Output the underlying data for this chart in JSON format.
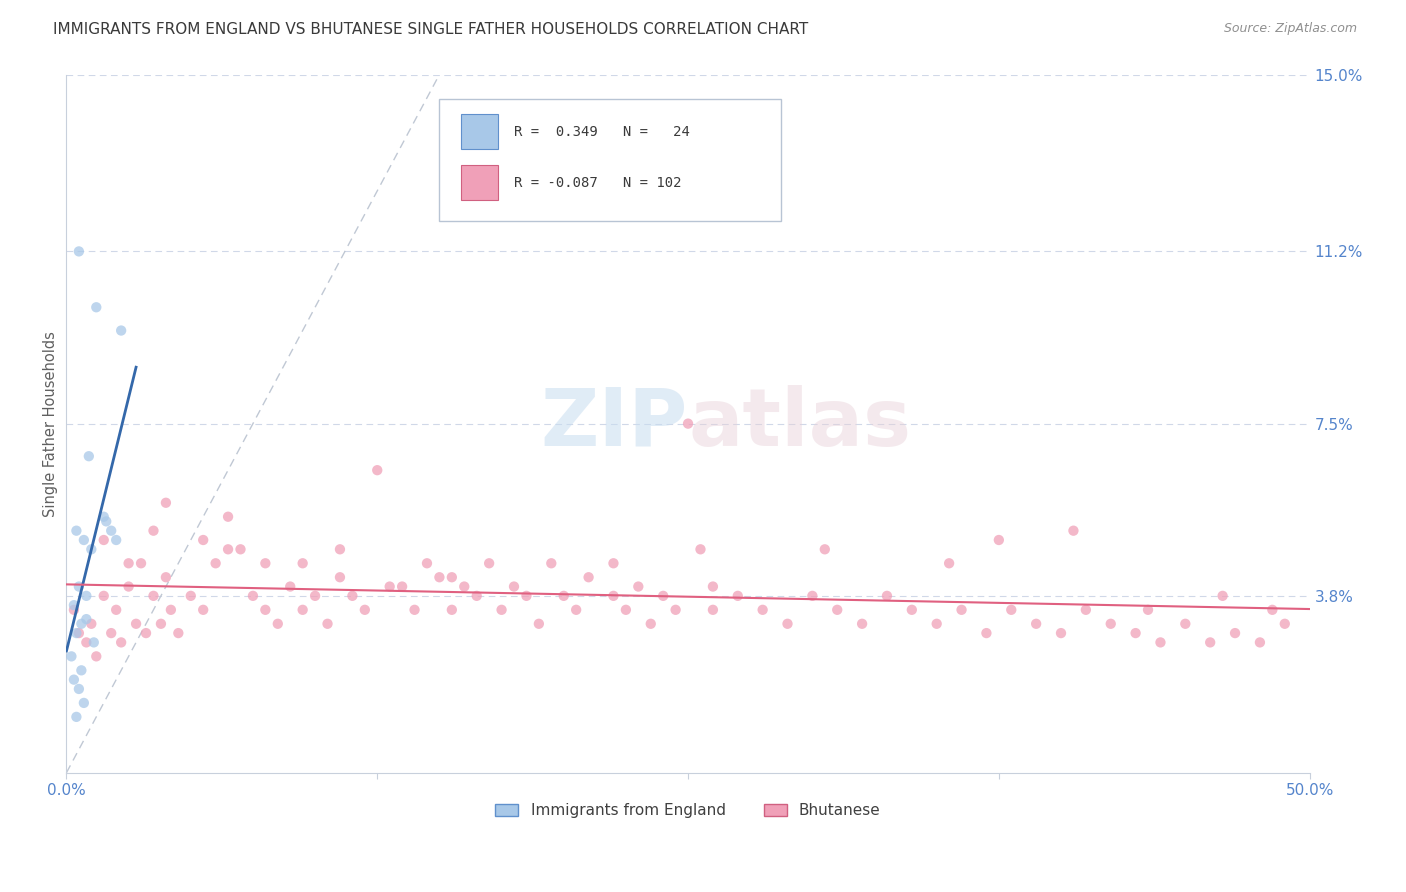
{
  "title": "IMMIGRANTS FROM ENGLAND VS BHUTANESE SINGLE FATHER HOUSEHOLDS CORRELATION CHART",
  "source": "Source: ZipAtlas.com",
  "ylabel": "Single Father Households",
  "xlim": [
    0.0,
    0.5
  ],
  "ylim": [
    -0.005,
    0.155
  ],
  "plot_ylim": [
    0.0,
    0.15
  ],
  "ytick_vals": [
    0.038,
    0.075,
    0.112,
    0.15
  ],
  "ytick_labels": [
    "3.8%",
    "7.5%",
    "11.2%",
    "15.0%"
  ],
  "xtick_vals": [
    0.0,
    0.125,
    0.25,
    0.375,
    0.5
  ],
  "xtick_labels": [
    "0.0%",
    "",
    "",
    "",
    "50.0%"
  ],
  "watermark": "ZIPatlas",
  "england_color": "#a8c8e8",
  "bhutanese_color": "#f0a0b8",
  "england_line_color": "#3468aa",
  "bhutanese_line_color": "#e06080",
  "diagonal_color": "#c0c8d4",
  "bg_color": "#ffffff",
  "grid_color": "#d0d8e8",
  "title_color": "#3a3a3a",
  "right_axis_color": "#5585cc",
  "dot_size": 55,
  "dot_alpha": 0.75,
  "england_x": [
    0.5,
    1.2,
    2.2,
    0.9,
    1.6,
    0.4,
    0.7,
    1.0,
    0.5,
    0.8,
    0.3,
    1.5,
    0.6,
    0.4,
    0.8,
    2.0,
    0.2,
    0.6,
    1.8,
    0.3,
    0.5,
    0.7,
    1.1,
    0.4
  ],
  "england_y": [
    11.2,
    10.0,
    9.5,
    6.8,
    5.4,
    5.2,
    5.0,
    4.8,
    4.0,
    3.8,
    3.6,
    5.5,
    3.2,
    3.0,
    3.3,
    5.0,
    2.5,
    2.2,
    5.2,
    2.0,
    1.8,
    1.5,
    2.8,
    1.2
  ],
  "bhutanese_x": [
    0.3,
    0.5,
    0.8,
    1.0,
    1.2,
    1.5,
    1.8,
    2.0,
    2.2,
    2.5,
    2.8,
    3.0,
    3.2,
    3.5,
    3.8,
    4.0,
    4.2,
    4.5,
    5.0,
    5.5,
    6.0,
    6.5,
    7.0,
    7.5,
    8.0,
    8.5,
    9.0,
    9.5,
    10.0,
    10.5,
    11.0,
    11.5,
    12.0,
    12.5,
    13.0,
    14.0,
    14.5,
    15.0,
    15.5,
    16.0,
    16.5,
    17.0,
    17.5,
    18.0,
    19.0,
    19.5,
    20.0,
    20.5,
    21.0,
    22.0,
    22.5,
    23.0,
    23.5,
    24.0,
    24.5,
    25.0,
    26.0,
    27.0,
    28.0,
    29.0,
    30.0,
    31.0,
    32.0,
    33.0,
    34.0,
    35.0,
    36.0,
    37.0,
    38.0,
    39.0,
    40.0,
    41.0,
    42.0,
    43.0,
    44.0,
    45.0,
    46.0,
    47.0,
    48.0,
    49.0,
    1.5,
    2.5,
    3.5,
    4.0,
    5.5,
    6.5,
    8.0,
    9.5,
    11.0,
    13.5,
    15.5,
    18.5,
    22.0,
    26.0,
    30.5,
    35.5,
    40.5,
    43.5,
    46.5,
    48.5,
    25.5,
    37.5
  ],
  "bhutanese_y": [
    3.5,
    3.0,
    2.8,
    3.2,
    2.5,
    3.8,
    3.0,
    3.5,
    2.8,
    4.0,
    3.2,
    4.5,
    3.0,
    3.8,
    3.2,
    4.2,
    3.5,
    3.0,
    3.8,
    3.5,
    4.5,
    5.5,
    4.8,
    3.8,
    3.5,
    3.2,
    4.0,
    3.5,
    3.8,
    3.2,
    4.2,
    3.8,
    3.5,
    6.5,
    4.0,
    3.5,
    4.5,
    4.2,
    3.5,
    4.0,
    3.8,
    4.5,
    3.5,
    4.0,
    3.2,
    4.5,
    3.8,
    3.5,
    4.2,
    3.8,
    3.5,
    4.0,
    3.2,
    3.8,
    3.5,
    7.5,
    3.5,
    3.8,
    3.5,
    3.2,
    3.8,
    3.5,
    3.2,
    3.8,
    3.5,
    3.2,
    3.5,
    3.0,
    3.5,
    3.2,
    3.0,
    3.5,
    3.2,
    3.0,
    2.8,
    3.2,
    2.8,
    3.0,
    2.8,
    3.2,
    5.0,
    4.5,
    5.2,
    5.8,
    5.0,
    4.8,
    4.5,
    4.5,
    4.8,
    4.0,
    4.2,
    3.8,
    4.5,
    4.0,
    4.8,
    4.5,
    5.2,
    3.5,
    3.8,
    3.5,
    4.8,
    5.0
  ]
}
